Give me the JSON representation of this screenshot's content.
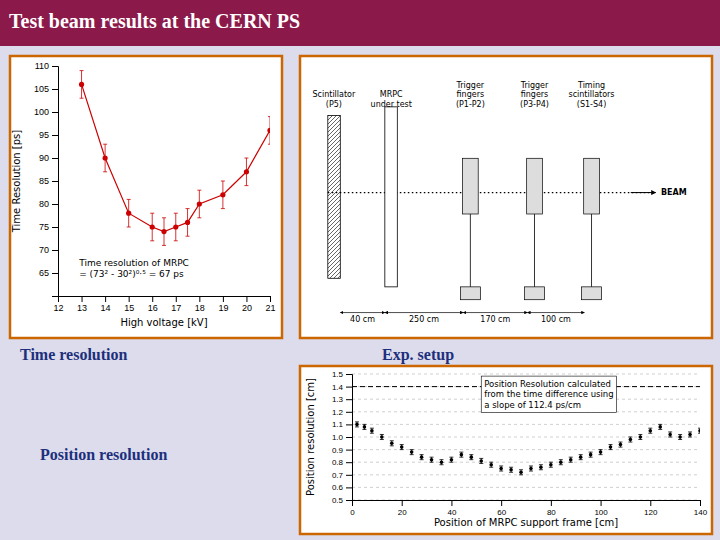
{
  "title": "Test beam results at the CERN PS",
  "chart_data": [
    {
      "type": "line",
      "title": "Time resolution",
      "xlabel": "High voltage [kV]",
      "ylabel": "Time Resolution [ps]",
      "x": [
        13,
        14,
        15,
        16,
        16.5,
        17,
        17.5,
        18,
        19,
        20,
        21
      ],
      "series": [
        {
          "color": "#CC0000",
          "marker": "circle",
          "values": [
            106,
            90,
            78,
            75,
            74,
            75,
            76,
            80,
            82,
            87,
            96
          ],
          "errors": [
            3,
            3,
            3,
            3,
            3,
            3,
            3,
            3,
            3,
            3,
            3
          ]
        }
      ],
      "xlim": [
        12,
        21
      ],
      "ylim": [
        60,
        110
      ],
      "xticks": [
        12,
        13,
        14,
        15,
        16,
        17,
        18,
        19,
        20,
        21
      ],
      "yticks": [
        65,
        70,
        75,
        80,
        85,
        90,
        95,
        100,
        105,
        110
      ],
      "grid": false,
      "annotations": [
        "Time resolution of MRPC\n= (73² - 30²)⁰·⁵ = 67 ps"
      ]
    },
    {
      "type": "scatter",
      "title": "Position resolution",
      "xlabel": "Position of MRPC support frame [cm]",
      "ylabel": "Position resolution [cm]",
      "x": [
        2,
        5,
        8,
        12,
        16,
        20,
        24,
        28,
        32,
        36,
        40,
        44,
        48,
        52,
        56,
        60,
        64,
        68,
        72,
        76,
        80,
        84,
        88,
        92,
        96,
        100,
        104,
        108,
        112,
        116,
        120,
        124,
        128,
        132,
        136,
        140
      ],
      "series": [
        {
          "color": "#000000",
          "marker": "point",
          "values": [
            1.1,
            1.08,
            1.05,
            1.0,
            0.95,
            0.92,
            0.88,
            0.84,
            0.82,
            0.8,
            0.82,
            0.86,
            0.84,
            0.81,
            0.78,
            0.75,
            0.74,
            0.72,
            0.75,
            0.76,
            0.78,
            0.8,
            0.82,
            0.84,
            0.86,
            0.88,
            0.92,
            0.94,
            0.98,
            1.0,
            1.05,
            1.08,
            1.02,
            1.0,
            1.02,
            1.05
          ],
          "errors": [
            0.02,
            0.02,
            0.02,
            0.02,
            0.02,
            0.02,
            0.02,
            0.02,
            0.02,
            0.02,
            0.02,
            0.02,
            0.02,
            0.02,
            0.02,
            0.02,
            0.02,
            0.02,
            0.02,
            0.02,
            0.02,
            0.02,
            0.02,
            0.02,
            0.02,
            0.02,
            0.02,
            0.02,
            0.02,
            0.02,
            0.02,
            0.02,
            0.02,
            0.02,
            0.02,
            0.02
          ]
        }
      ],
      "xlim": [
        0,
        140
      ],
      "ylim": [
        0.5,
        1.5
      ],
      "xticks": [
        0,
        20,
        40,
        60,
        80,
        100,
        120,
        140
      ],
      "yticks": [
        0.5,
        0.6,
        0.7,
        0.8,
        0.9,
        {
          "value": 1,
          "label": "1.0"
        },
        1.1,
        1.2,
        1.3,
        1.4,
        1.5
      ],
      "grid": true,
      "reference_line": 1.4,
      "annotations": [
        "Position Resolution calculated\nfrom the time difference using\na slope of 112.4 ps/cm"
      ]
    },
    {
      "type": "diagram",
      "title": "Exp. setup",
      "annotations": [
        "BEAM",
        "Scintillator\n(P5)",
        "MRPC\nunder test",
        "Trigger\nfingers\n(P1-P2)",
        "Trigger\nfingers\n(P3-P4)",
        "Timing\nscintillators\n(S1-S4)",
        "40 cm",
        "250 cm",
        "170 cm",
        "100 cm"
      ]
    }
  ]
}
